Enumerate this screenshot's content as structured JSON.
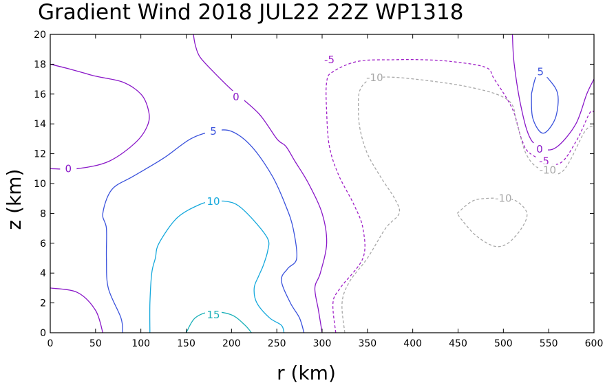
{
  "chart_data": {
    "type": "contour",
    "title": "Gradient Wind 2018 JUL22 22Z  WP1318",
    "xlabel": "r (km)",
    "ylabel": "z (km)",
    "xlim": [
      0,
      600
    ],
    "ylim": [
      0,
      20
    ],
    "x_ticks": [
      "0",
      "50",
      "100",
      "150",
      "200",
      "250",
      "300",
      "350",
      "400",
      "450",
      "500",
      "550",
      "600"
    ],
    "y_ticks": [
      "0",
      "2",
      "4",
      "6",
      "8",
      "10",
      "12",
      "14",
      "16",
      "18",
      "20"
    ],
    "grid": false,
    "contours": [
      {
        "level": "15",
        "color": "#1ab0b8",
        "dash": false,
        "points": [
          [
            150,
            0
          ],
          [
            160,
            1
          ],
          [
            178,
            1.4
          ],
          [
            200,
            1.2
          ],
          [
            215,
            0.5
          ],
          [
            222,
            0
          ]
        ],
        "label_at": [
          180,
          1.2
        ]
      },
      {
        "level": "10",
        "color": "#14a8dc",
        "dash": false,
        "points": [
          [
            110,
            0
          ],
          [
            110,
            2
          ],
          [
            112,
            4
          ],
          [
            116,
            5
          ],
          [
            120,
            6
          ],
          [
            140,
            7.7
          ],
          [
            165,
            8.6
          ],
          [
            180,
            8.8
          ],
          [
            195,
            8.8
          ],
          [
            208,
            8.5
          ],
          [
            225,
            7.5
          ],
          [
            240,
            6.3
          ],
          [
            240,
            5.5
          ],
          [
            235,
            4.5
          ],
          [
            230,
            3.8
          ],
          [
            225,
            3
          ],
          [
            228,
            2
          ],
          [
            242,
            1
          ],
          [
            255,
            0.5
          ],
          [
            258,
            0
          ]
        ],
        "label_at": [
          180,
          8.8
        ]
      },
      {
        "level": "5",
        "color": "#3a52dc",
        "dash": false,
        "points": [
          [
            80,
            0
          ],
          [
            78,
            1
          ],
          [
            64,
            3
          ],
          [
            62,
            5
          ],
          [
            62,
            7
          ],
          [
            58,
            8
          ],
          [
            68,
            9.6
          ],
          [
            92,
            10.5
          ],
          [
            125,
            11.7
          ],
          [
            155,
            13
          ],
          [
            180,
            13.5
          ],
          [
            200,
            13.5
          ],
          [
            222,
            12.5
          ],
          [
            245,
            10.5
          ],
          [
            260,
            8.5
          ],
          [
            268,
            7
          ],
          [
            272,
            5
          ],
          [
            262,
            4.3
          ],
          [
            255,
            3.5
          ],
          [
            265,
            2
          ],
          [
            275,
            1
          ],
          [
            280,
            0
          ]
        ],
        "label_at": [
          180,
          13.5
        ]
      },
      {
        "level": "0",
        "color": "#8a18c8",
        "dash": false,
        "points": [
          [
            58,
            0
          ],
          [
            50,
            1.5
          ],
          [
            30,
            2.7
          ],
          [
            0,
            3
          ]
        ],
        "label_at": null
      },
      {
        "level": "0",
        "color": "#8a18c8",
        "dash": false,
        "points": [
          [
            0,
            11
          ],
          [
            30,
            11
          ],
          [
            65,
            11.5
          ],
          [
            95,
            12.8
          ],
          [
            108,
            14
          ],
          [
            108,
            15
          ],
          [
            100,
            16
          ],
          [
            80,
            16.8
          ],
          [
            50,
            17.2
          ],
          [
            20,
            17.7
          ],
          [
            0,
            18
          ]
        ],
        "label_at": [
          20,
          11
        ]
      },
      {
        "level": "0",
        "color": "#8a18c8",
        "dash": false,
        "points": [
          [
            300,
            0
          ],
          [
            296,
            1.5
          ],
          [
            292,
            3
          ],
          [
            298,
            4
          ],
          [
            305,
            6
          ],
          [
            300,
            8
          ],
          [
            285,
            10
          ],
          [
            270,
            11.5
          ],
          [
            260,
            12.5
          ],
          [
            250,
            13
          ],
          [
            230,
            14.7
          ],
          [
            200,
            16.3
          ],
          [
            180,
            17.5
          ],
          [
            165,
            18.5
          ],
          [
            160,
            19.3
          ],
          [
            158,
            20
          ]
        ],
        "label_at": [
          205,
          15.8
        ]
      },
      {
        "level": "0",
        "color": "#8a18c8",
        "dash": false,
        "points": [
          [
            510,
            20
          ],
          [
            512,
            18
          ],
          [
            520,
            15
          ],
          [
            530,
            13
          ],
          [
            545,
            12.3
          ],
          [
            560,
            12.5
          ],
          [
            580,
            14
          ],
          [
            592,
            16
          ],
          [
            600,
            17
          ]
        ],
        "label_at": [
          540,
          12.3
        ]
      },
      {
        "level": "-5",
        "color": "#a020c8",
        "dash": true,
        "points": [
          [
            315,
            0
          ],
          [
            312,
            2
          ],
          [
            320,
            3
          ],
          [
            345,
            5
          ],
          [
            345,
            7
          ],
          [
            335,
            8.6
          ],
          [
            318,
            10.6
          ],
          [
            308,
            12.5
          ],
          [
            305,
            14.8
          ],
          [
            305,
            16.8
          ],
          [
            312,
            17.5
          ],
          [
            340,
            18.2
          ],
          [
            380,
            18.3
          ],
          [
            410,
            18.3
          ],
          [
            440,
            18.2
          ],
          [
            480,
            17.8
          ],
          [
            490,
            17
          ],
          [
            510,
            15
          ],
          [
            520,
            13
          ],
          [
            530,
            12
          ],
          [
            560,
            11.3
          ],
          [
            580,
            12.8
          ],
          [
            595,
            14.7
          ],
          [
            600,
            14.8
          ]
        ],
        "label_at": [
          545,
          11.5
        ]
      },
      {
        "level": "-10",
        "color": "#a8a8a8",
        "dash": true,
        "points": [
          [
            325,
            0
          ],
          [
            322,
            2
          ],
          [
            330,
            3.4
          ],
          [
            350,
            5
          ],
          [
            370,
            7
          ],
          [
            385,
            8
          ],
          [
            380,
            9
          ],
          [
            365,
            10.4
          ],
          [
            350,
            12
          ],
          [
            342,
            13.6
          ],
          [
            340,
            15
          ],
          [
            342,
            16.3
          ],
          [
            355,
            17
          ],
          [
            385,
            17.1
          ],
          [
            460,
            16.5
          ],
          [
            505,
            15.6
          ],
          [
            515,
            14
          ],
          [
            525,
            12
          ],
          [
            540,
            11
          ],
          [
            565,
            10.8
          ],
          [
            590,
            13.5
          ],
          [
            600,
            13.8
          ]
        ],
        "label_at": [
          549,
          10.9
        ]
      },
      {
        "level": "-10",
        "color": "#a8a8a8",
        "dash": true,
        "points": [
          [
            449,
            8
          ],
          [
            465,
            8.8
          ],
          [
            480,
            9
          ],
          [
            500,
            9
          ],
          [
            515,
            8.8
          ],
          [
            526,
            8
          ],
          [
            520,
            7
          ],
          [
            505,
            6
          ],
          [
            490,
            5.8
          ],
          [
            470,
            6.5
          ],
          [
            455,
            7.5
          ],
          [
            449,
            8
          ]
        ],
        "label_at": [
          500,
          9
        ]
      },
      {
        "level": "-5",
        "color": "#a020c8",
        "dash": true,
        "points": [],
        "label_at": [
          308,
          18.3
        ]
      },
      {
        "level": "-10",
        "color": "#a8a8a8",
        "dash": true,
        "points": [],
        "label_at": [
          358,
          17.1
        ]
      },
      {
        "level": "5",
        "color": "#3a52dc",
        "dash": false,
        "points": [
          [
            531,
            16
          ],
          [
            535,
            17
          ],
          [
            540,
            17.5
          ],
          [
            550,
            17
          ],
          [
            560,
            16
          ],
          [
            558,
            14.5
          ],
          [
            548,
            13.5
          ],
          [
            540,
            13.5
          ],
          [
            532,
            14.5
          ],
          [
            531,
            16
          ]
        ],
        "label_at": [
          541,
          17.5
        ]
      }
    ]
  }
}
